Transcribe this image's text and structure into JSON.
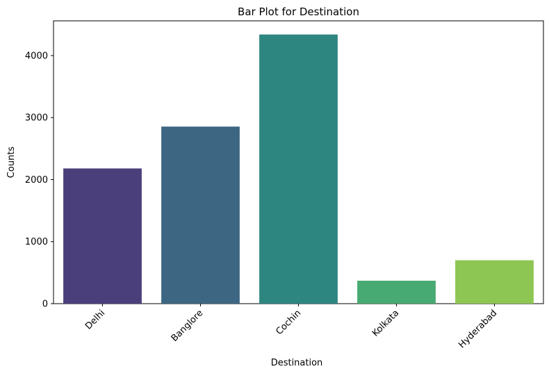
{
  "chart_data": {
    "type": "bar",
    "title": "Bar Plot for Destination",
    "xlabel": "Destination",
    "ylabel": "Counts",
    "categories": [
      "Delhi",
      "Banglore",
      "Cochin",
      "Kolkata",
      "Hyderabad"
    ],
    "values": [
      2180,
      2855,
      4340,
      370,
      700
    ],
    "colors": [
      "#4a3f7a",
      "#3d6683",
      "#2e8680",
      "#47aa72",
      "#8ec653"
    ],
    "ylim": [
      0,
      4560
    ],
    "yticks": [
      0,
      1000,
      2000,
      3000,
      4000
    ],
    "grid": false,
    "legend": "none",
    "xtick_rotation": -45
  }
}
